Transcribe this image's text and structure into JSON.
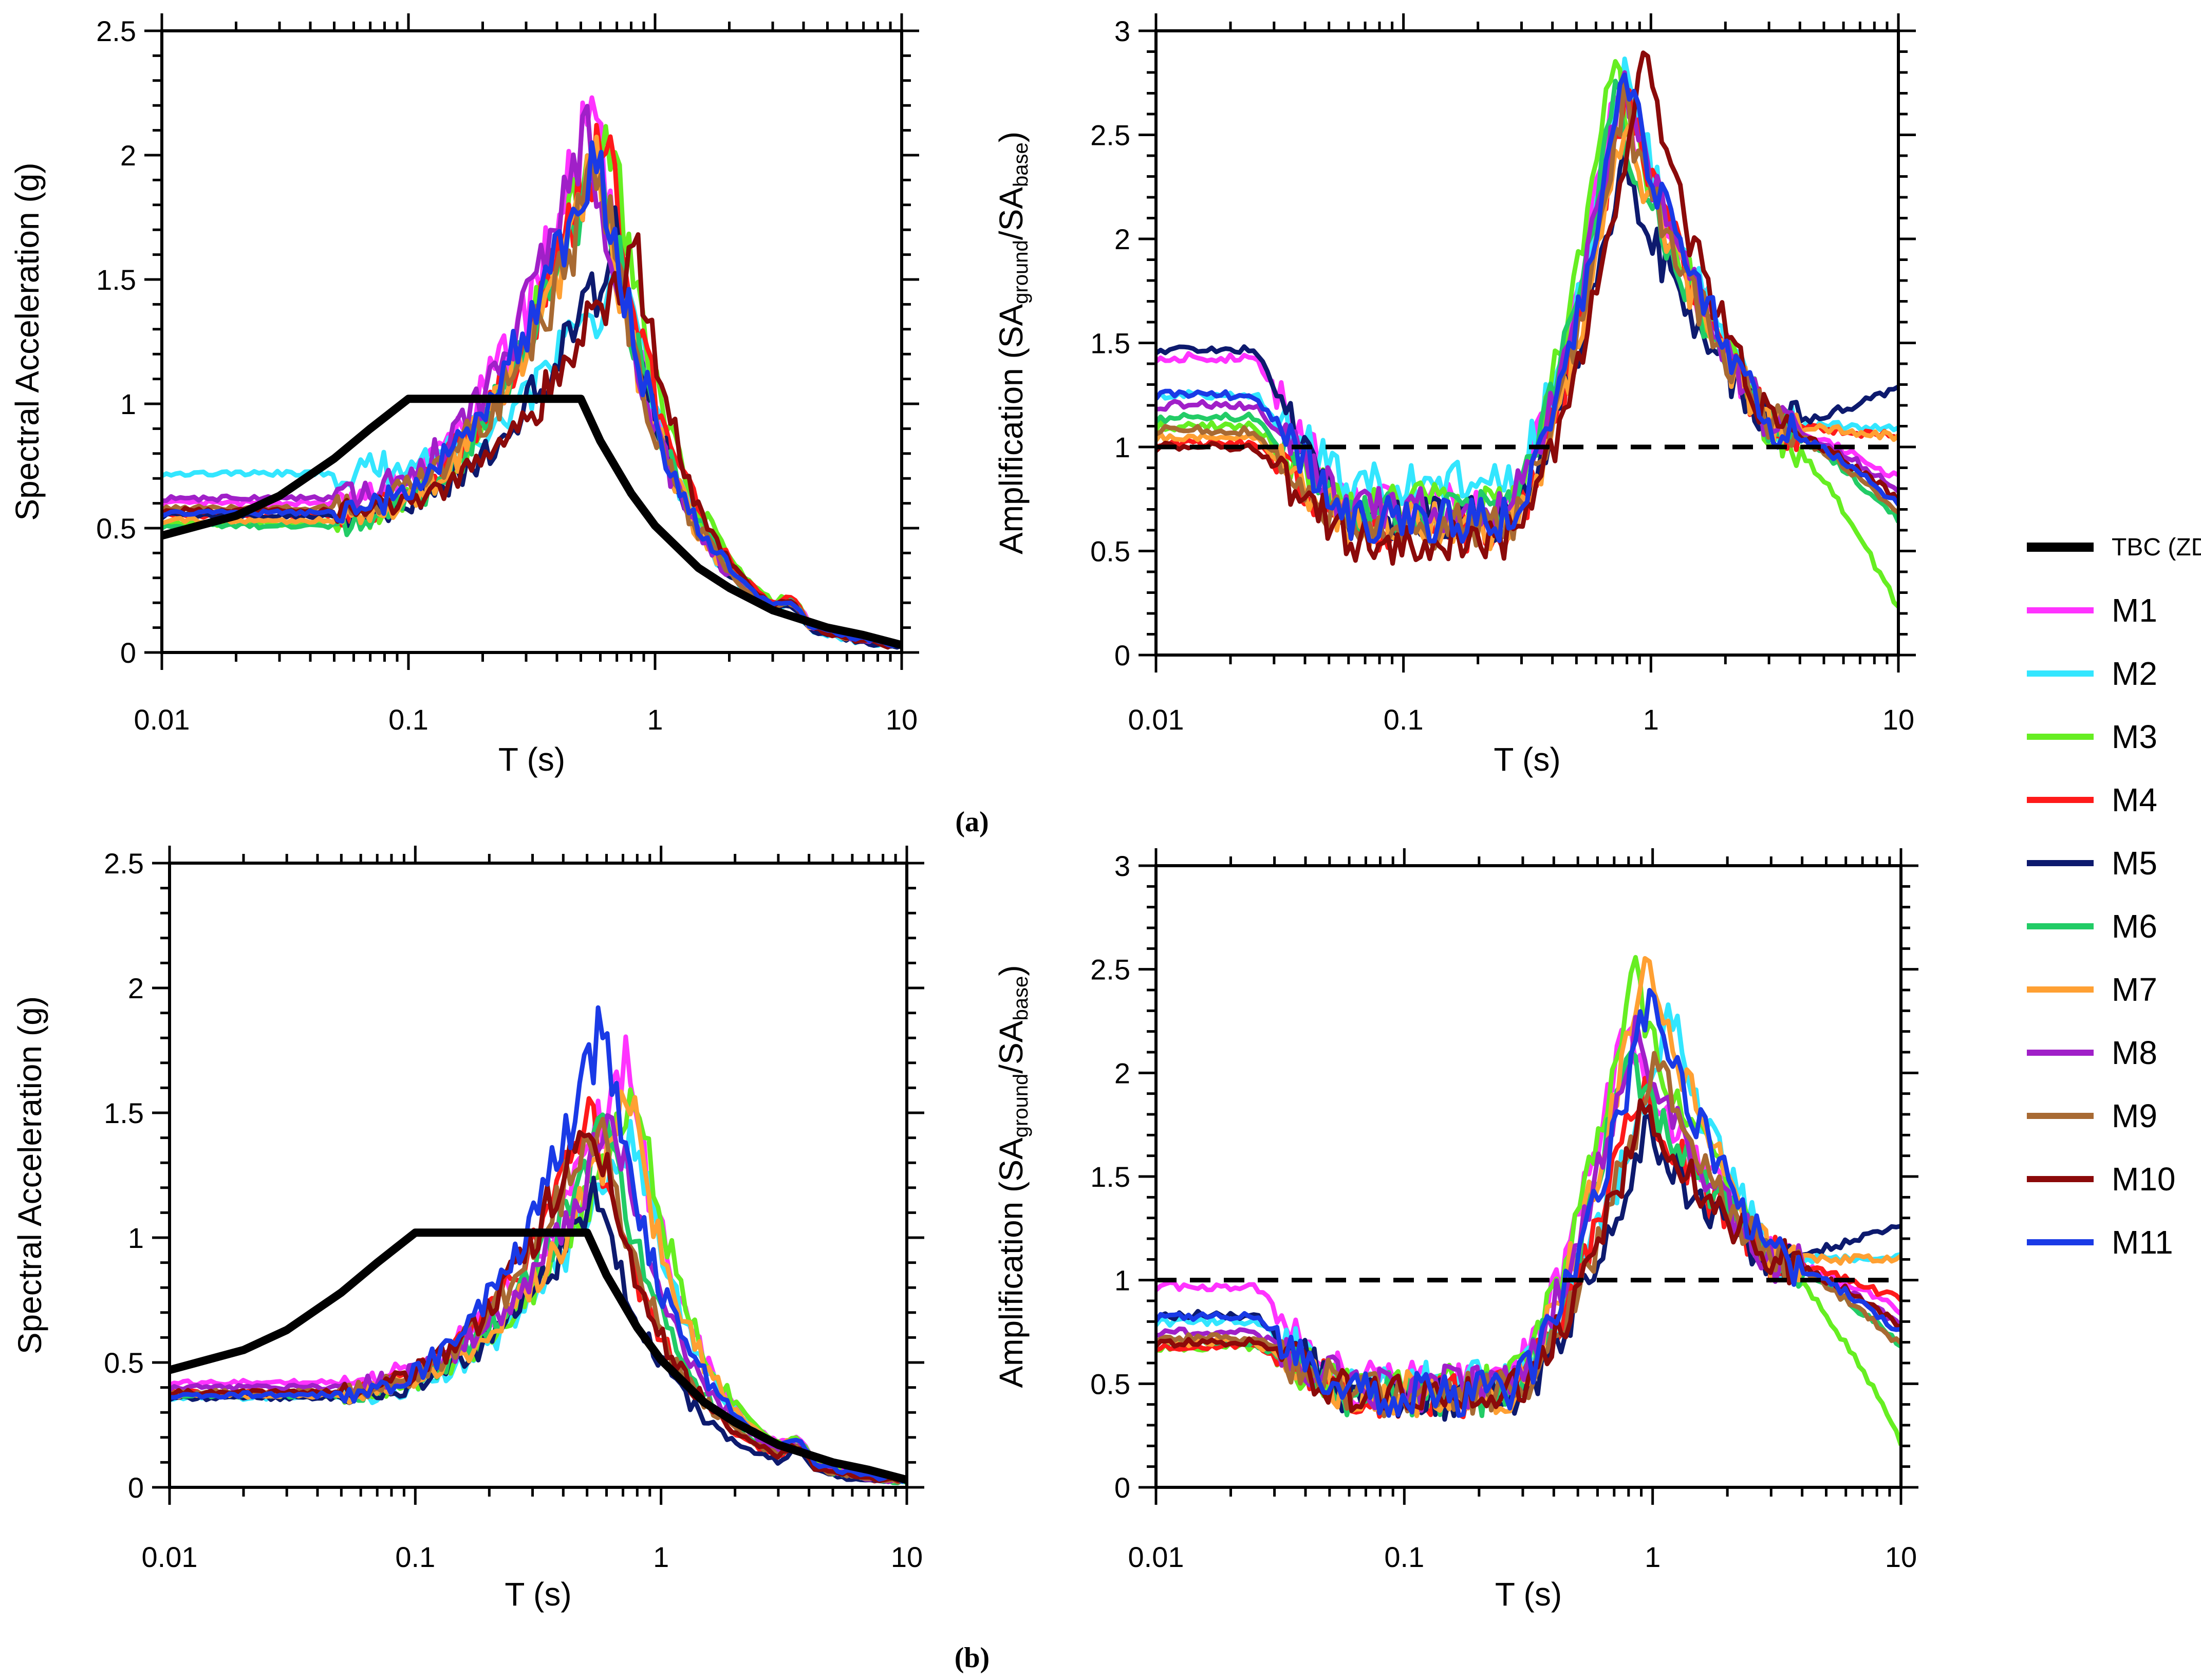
{
  "figure": {
    "panel_labels": [
      "(a)",
      "(b)"
    ]
  },
  "legend": {
    "entries": [
      {
        "name": "TBC (ZD)",
        "color": "#000000",
        "dashed": false
      },
      {
        "name": "M1",
        "color": "#ff33ff"
      },
      {
        "name": "M2",
        "color": "#33e6ff"
      },
      {
        "name": "M3",
        "color": "#66ee22"
      },
      {
        "name": "M4",
        "color": "#ff1a1a"
      },
      {
        "name": "M5",
        "color": "#0d1a6e"
      },
      {
        "name": "M6",
        "color": "#22cc66"
      },
      {
        "name": "M7",
        "color": "#ffa033"
      },
      {
        "name": "M8",
        "color": "#a020c8"
      },
      {
        "name": "M9",
        "color": "#a86a33"
      },
      {
        "name": "M10",
        "color": "#8b0a0a"
      },
      {
        "name": "M11",
        "color": "#1a3ae6"
      }
    ]
  },
  "chart_data": [
    {
      "id": "a-left",
      "type": "line",
      "xscale": "log",
      "xlim": [
        0.01,
        10
      ],
      "ylim": [
        0,
        2.5
      ],
      "xticks": [
        "0.01",
        "0.1",
        "1",
        "10"
      ],
      "yticks": [
        "0",
        "0.5",
        "1",
        "1.5",
        "2",
        "2.5"
      ],
      "xlabel": "T (s)",
      "ylabel": "Spectral Acceleration (g)",
      "series": [
        {
          "name": "M1",
          "pga": 0.6,
          "peak": 2.18,
          "tp": 0.56,
          "tail": 0.03
        },
        {
          "name": "M2",
          "pga": 0.72,
          "peak": 1.57,
          "tp": 0.75,
          "tail": 0.03
        },
        {
          "name": "M3",
          "pga": 0.52,
          "peak": 2.2,
          "tp": 0.63,
          "tail": 0.02
        },
        {
          "name": "M4",
          "pga": 0.55,
          "peak": 2.15,
          "tp": 0.62,
          "tail": 0.03
        },
        {
          "name": "M5",
          "pga": 0.55,
          "peak": 1.66,
          "tp": 0.7,
          "tail": 0.03
        },
        {
          "name": "M6",
          "pga": 0.51,
          "peak": 2.05,
          "tp": 0.6,
          "tail": 0.02
        },
        {
          "name": "M7",
          "pga": 0.53,
          "peak": 2.0,
          "tp": 0.58,
          "tail": 0.03
        },
        {
          "name": "M8",
          "pga": 0.62,
          "peak": 2.1,
          "tp": 0.55,
          "tail": 0.03
        },
        {
          "name": "M9",
          "pga": 0.58,
          "peak": 1.95,
          "tp": 0.6,
          "tail": 0.03
        },
        {
          "name": "M10",
          "pga": 0.57,
          "peak": 1.65,
          "tp": 0.82,
          "tail": 0.03
        },
        {
          "name": "M11",
          "pga": 0.56,
          "peak": 2.1,
          "tp": 0.58,
          "tail": 0.03
        }
      ],
      "reference": {
        "name": "TBC (ZD)",
        "x": [
          0.01,
          0.02,
          0.03,
          0.05,
          0.07,
          0.1,
          0.5,
          0.6,
          0.8,
          1,
          1.5,
          2,
          3,
          5,
          7,
          10
        ],
        "y": [
          0.47,
          0.55,
          0.63,
          0.78,
          0.9,
          1.02,
          1.02,
          0.85,
          0.64,
          0.51,
          0.34,
          0.26,
          0.17,
          0.1,
          0.07,
          0.03
        ]
      },
      "dashed_line": null
    },
    {
      "id": "a-right",
      "type": "line",
      "xscale": "log",
      "xlim": [
        0.01,
        10
      ],
      "ylim": [
        0,
        3
      ],
      "xticks": [
        "0.01",
        "0.1",
        "1",
        "10"
      ],
      "yticks": [
        "0",
        "0.5",
        "1",
        "1.5",
        "2",
        "2.5",
        "3"
      ],
      "xlabel": "T (s)",
      "ylabel": "Amplification (SA",
      "ylabel_sub1": "ground",
      "ylabel_mid": "/SA",
      "ylabel_sub2": "base",
      "ylabel_end": ")",
      "series": [
        {
          "name": "M1",
          "start": 1.43,
          "trough": 0.72,
          "peak": 2.8,
          "tp": 0.75,
          "tail": 0.85
        },
        {
          "name": "M2",
          "start": 1.25,
          "trough": 0.82,
          "peak": 2.85,
          "tp": 0.8,
          "tail": 1.1
        },
        {
          "name": "M3",
          "start": 1.1,
          "trough": 0.72,
          "peak": 2.9,
          "tp": 0.72,
          "tail": 0.22
        },
        {
          "name": "M4",
          "start": 1.02,
          "trough": 0.6,
          "peak": 2.75,
          "tp": 0.8,
          "tail": 1.05
        },
        {
          "name": "M5",
          "start": 1.47,
          "trough": 0.65,
          "peak": 2.42,
          "tp": 0.78,
          "tail": 1.28
        },
        {
          "name": "M6",
          "start": 1.14,
          "trough": 0.68,
          "peak": 2.75,
          "tp": 0.72,
          "tail": 0.65
        },
        {
          "name": "M7",
          "start": 1.05,
          "trough": 0.62,
          "peak": 2.6,
          "tp": 0.8,
          "tail": 1.05
        },
        {
          "name": "M8",
          "start": 1.2,
          "trough": 0.7,
          "peak": 2.8,
          "tp": 0.78,
          "tail": 0.8
        },
        {
          "name": "M9",
          "start": 1.08,
          "trough": 0.62,
          "peak": 2.7,
          "tp": 0.78,
          "tail": 0.68
        },
        {
          "name": "M10",
          "start": 1.0,
          "trough": 0.55,
          "peak": 2.9,
          "tp": 0.95,
          "tail": 0.75
        },
        {
          "name": "M11",
          "start": 1.25,
          "trough": 0.65,
          "peak": 2.85,
          "tp": 0.8,
          "tail": 0.72
        }
      ],
      "reference": null,
      "dashed_line": {
        "y": 1
      }
    },
    {
      "id": "b-left",
      "type": "line",
      "xscale": "log",
      "xlim": [
        0.01,
        10
      ],
      "ylim": [
        0,
        2.5
      ],
      "xticks": [
        "0.01",
        "0.1",
        "1",
        "10"
      ],
      "yticks": [
        "0",
        "0.5",
        "1",
        "1.5",
        "2",
        "2.5"
      ],
      "xlabel": "T (s)",
      "ylabel": "Spectral Acceleration (g)",
      "series": [
        {
          "name": "M1",
          "pga": 0.42,
          "peak": 1.7,
          "tp": 0.72,
          "tail": 0.03
        },
        {
          "name": "M2",
          "pga": 0.36,
          "peak": 1.45,
          "tp": 0.78,
          "tail": 0.03
        },
        {
          "name": "M3",
          "pga": 0.37,
          "peak": 1.57,
          "tp": 0.8,
          "tail": 0.02
        },
        {
          "name": "M4",
          "pga": 0.38,
          "peak": 1.5,
          "tp": 0.52,
          "tail": 0.03
        },
        {
          "name": "M5",
          "pga": 0.36,
          "peak": 1.2,
          "tp": 0.55,
          "tail": 0.03
        },
        {
          "name": "M6",
          "pga": 0.37,
          "peak": 1.45,
          "tp": 0.6,
          "tail": 0.02
        },
        {
          "name": "M7",
          "pga": 0.37,
          "peak": 1.55,
          "tp": 0.75,
          "tail": 0.03
        },
        {
          "name": "M8",
          "pga": 0.4,
          "peak": 1.5,
          "tp": 0.65,
          "tail": 0.03
        },
        {
          "name": "M9",
          "pga": 0.38,
          "peak": 1.5,
          "tp": 0.55,
          "tail": 0.03
        },
        {
          "name": "M10",
          "pga": 0.38,
          "peak": 1.55,
          "tp": 0.52,
          "tail": 0.03
        },
        {
          "name": "M11",
          "pga": 0.37,
          "peak": 1.84,
          "tp": 0.57,
          "tail": 0.03
        }
      ],
      "reference": {
        "name": "TBC (ZD)",
        "x": [
          0.01,
          0.02,
          0.03,
          0.05,
          0.07,
          0.1,
          0.5,
          0.6,
          0.8,
          1,
          1.5,
          2,
          3,
          5,
          7,
          10
        ],
        "y": [
          0.47,
          0.55,
          0.63,
          0.78,
          0.9,
          1.02,
          1.02,
          0.85,
          0.64,
          0.51,
          0.34,
          0.26,
          0.17,
          0.1,
          0.07,
          0.03
        ]
      },
      "dashed_line": null
    },
    {
      "id": "b-right",
      "type": "line",
      "xscale": "log",
      "xlim": [
        0.01,
        10
      ],
      "ylim": [
        0,
        3
      ],
      "xticks": [
        "0.01",
        "0.1",
        "1",
        "10"
      ],
      "yticks": [
        "0",
        "0.5",
        "1",
        "1.5",
        "2",
        "2.5",
        "3"
      ],
      "xlabel": "T (s)",
      "ylabel": "Amplification (SA",
      "ylabel_sub1": "ground",
      "ylabel_mid": "/SA",
      "ylabel_sub2": "base",
      "ylabel_end": ")",
      "series": [
        {
          "name": "M1",
          "start": 0.97,
          "trough": 0.5,
          "peak": 2.3,
          "tp": 0.78,
          "tail": 0.85
        },
        {
          "name": "M2",
          "start": 0.8,
          "trough": 0.5,
          "peak": 2.32,
          "tp": 1.2,
          "tail": 1.12
        },
        {
          "name": "M3",
          "start": 0.68,
          "trough": 0.48,
          "peak": 2.5,
          "tp": 0.85,
          "tail": 0.22
        },
        {
          "name": "M4",
          "start": 0.68,
          "trough": 0.45,
          "peak": 1.95,
          "tp": 0.9,
          "tail": 0.9
        },
        {
          "name": "M5",
          "start": 0.83,
          "trough": 0.42,
          "peak": 1.75,
          "tp": 0.95,
          "tail": 1.28
        },
        {
          "name": "M6",
          "start": 0.7,
          "trough": 0.45,
          "peak": 2.1,
          "tp": 0.8,
          "tail": 0.68
        },
        {
          "name": "M7",
          "start": 0.7,
          "trough": 0.45,
          "peak": 2.64,
          "tp": 0.97,
          "tail": 1.1
        },
        {
          "name": "M8",
          "start": 0.75,
          "trough": 0.48,
          "peak": 2.25,
          "tp": 0.85,
          "tail": 0.78
        },
        {
          "name": "M9",
          "start": 0.72,
          "trough": 0.45,
          "peak": 2.1,
          "tp": 1.05,
          "tail": 0.68
        },
        {
          "name": "M10",
          "start": 0.7,
          "trough": 0.45,
          "peak": 1.9,
          "tp": 0.95,
          "tail": 0.78
        },
        {
          "name": "M11",
          "start": 0.82,
          "trough": 0.45,
          "peak": 2.45,
          "tp": 1.0,
          "tail": 0.75
        }
      ],
      "reference": null,
      "dashed_line": {
        "y": 1
      }
    }
  ]
}
